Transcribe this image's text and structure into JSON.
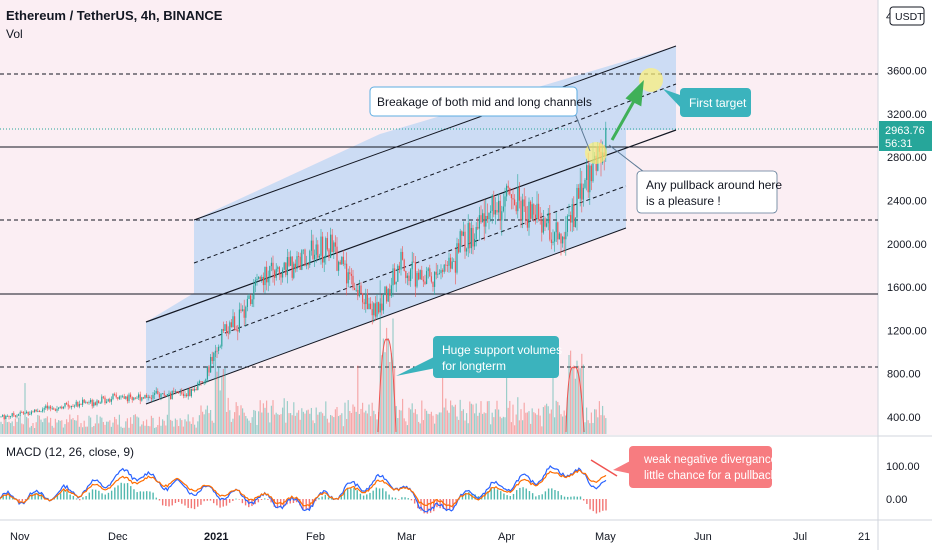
{
  "header": {
    "title": "Ethereum / TetherUS, 4h, BINANCE",
    "vol_label": "Vol",
    "currency": "USDT",
    "price_cut": "4"
  },
  "macd": {
    "label": "MACD (12, 26, close, 9)"
  },
  "price_badge": {
    "price": "2963.76",
    "timer": "56:31"
  },
  "annotations": {
    "breakage": "Breakage of both mid and long channels",
    "first_target": "First target",
    "pullback": [
      "Any pullback around here",
      "is a pleasure !"
    ],
    "volumes": [
      "Huge support volumes",
      "for longterm"
    ],
    "divergence": [
      "weak negative divergance,",
      "little chance for a pullback"
    ]
  },
  "colors": {
    "chart_bg": "#fbeef3",
    "channel_fill": "#c6d9f4",
    "up": "#26a69a",
    "down": "#ef5350",
    "macd_line": "#2962ff",
    "signal_line": "#ff6d00",
    "teal_note": "#3bb3bd",
    "red_note": "#f77c80"
  },
  "chart_data": [
    {
      "type": "candlestick",
      "title": "Ethereum / TetherUS, 4h, BINANCE",
      "x_ticks": [
        "Nov",
        "Dec",
        "2021",
        "Feb",
        "Mar",
        "Apr",
        "May",
        "Jun",
        "Jul",
        "21"
      ],
      "y_ticks": [
        "3600.00",
        "3200.00",
        "2800.00",
        "2400.00",
        "2000.00",
        "1600.00",
        "1200.00",
        "800.00",
        "400.00"
      ],
      "ylim": [
        260,
        4050
      ],
      "last_price": 2963.76,
      "trend": {
        "x": [
          "Nov 1",
          "Dec 1",
          "Dec 25",
          "Jan 1",
          "Jan 10",
          "Jan 20",
          "Feb 5",
          "Feb 20",
          "Feb 28",
          "Mar 12",
          "Mar 28",
          "Apr 3",
          "Apr 15",
          "Apr 18",
          "Apr 25",
          "May 1"
        ],
        "close": [
          400,
          570,
          620,
          730,
          1180,
          1280,
          1700,
          1950,
          1350,
          1800,
          1650,
          2080,
          2450,
          2100,
          2300,
          2964
        ]
      },
      "horizontal_levels": [
        3480,
        2960,
        2100,
        1430,
        760
      ],
      "channel": {
        "outer_upper": [
          [
            "Jan 1",
            2080
          ],
          [
            "May 23",
            3720
          ]
        ],
        "outer_lower": [
          [
            "Nov 26",
            400
          ],
          [
            "May 8",
            2040
          ]
        ],
        "midline": [
          [
            "Nov 26",
            1170
          ],
          [
            "May 23",
            3100
          ]
        ]
      }
    },
    {
      "type": "line",
      "title": "MACD (12, 26, close, 9)",
      "y_ticks": [
        "100.00",
        "0.00"
      ],
      "series": [
        {
          "name": "",
          "values": [
            0,
            10,
            30,
            80,
            40,
            20,
            0,
            -20,
            30,
            60,
            -40,
            20,
            50,
            90,
            40
          ]
        },
        {
          "name": "",
          "values": [
            0,
            5,
            25,
            60,
            50,
            25,
            5,
            -10,
            20,
            50,
            -20,
            10,
            40,
            80,
            60
          ]
        }
      ]
    }
  ]
}
